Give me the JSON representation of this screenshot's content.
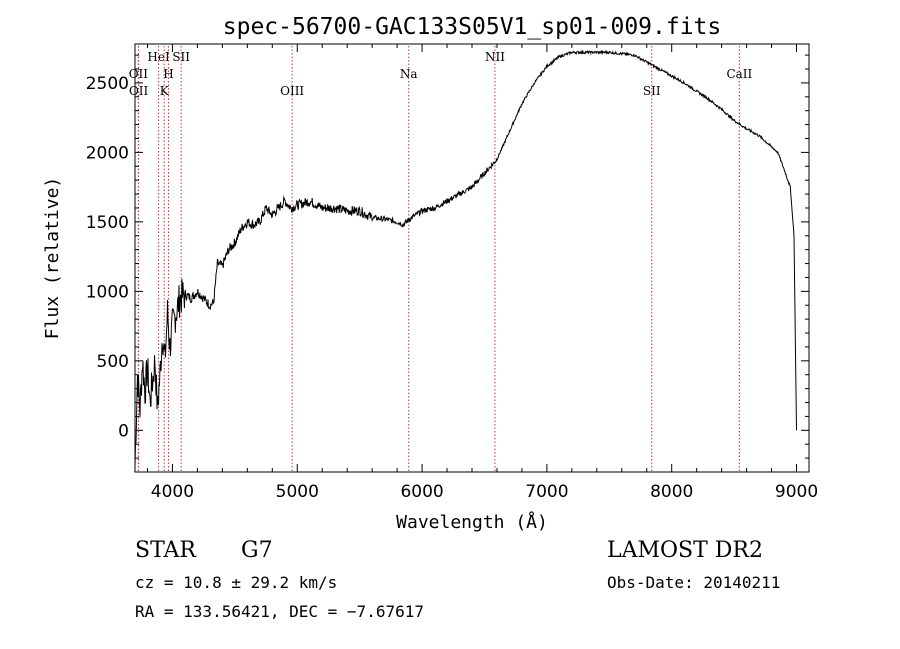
{
  "chart_data": {
    "type": "line",
    "title": "spec-56700-GAC133S05V1_sp01-009.fits",
    "xlabel": "Wavelength (Å)",
    "ylabel": "Flux (relative)",
    "xlim": [
      3700,
      9100
    ],
    "ylim": [
      -300,
      2780
    ],
    "x_ticks": [
      4000,
      5000,
      6000,
      7000,
      8000,
      9000
    ],
    "y_ticks": [
      0,
      500,
      1000,
      1500,
      2000,
      2500
    ],
    "grid": false,
    "line_color": "#000000",
    "marker_color": "#cc3333",
    "lines": [
      {
        "name": "OII",
        "wavelength": 3727,
        "row": "upper"
      },
      {
        "name": "OII",
        "wavelength": 3729,
        "row": "lower"
      },
      {
        "name": "HeI",
        "wavelength": 3889,
        "row": "top"
      },
      {
        "name": "H",
        "wavelength": 3968,
        "row": "upper"
      },
      {
        "name": "K",
        "wavelength": 3934,
        "row": "lower"
      },
      {
        "name": "SII",
        "wavelength": 4070,
        "row": "top"
      },
      {
        "name": "OIII",
        "wavelength": 4959,
        "row": "lower"
      },
      {
        "name": "Na",
        "wavelength": 5893,
        "row": "upper"
      },
      {
        "name": "NII",
        "wavelength": 6584,
        "row": "top"
      },
      {
        "name": "SII",
        "wavelength": 7840,
        "row": "lower"
      },
      {
        "name": "CaII",
        "wavelength": 8542,
        "row": "upper"
      }
    ],
    "series": [
      {
        "x": [
          3700,
          3720,
          3740,
          3760,
          3780,
          3800,
          3820,
          3840,
          3860,
          3880,
          3900,
          3920,
          3940,
          3960,
          3980,
          4000,
          4030,
          4060,
          4100,
          4150,
          4200,
          4250,
          4300,
          4330,
          4360,
          4400,
          4450,
          4500,
          4550,
          4600,
          4650,
          4700,
          4750,
          4800,
          4850,
          4900,
          4950,
          5000,
          5100,
          5200,
          5300,
          5400,
          5500,
          5600,
          5700,
          5800,
          5850,
          5900,
          6000,
          6100,
          6200,
          6300,
          6400,
          6500,
          6550,
          6600,
          6650,
          6700,
          6800,
          6900,
          7000,
          7100,
          7200,
          7300,
          7400,
          7500,
          7600,
          7700,
          7800,
          7900,
          8000,
          8100,
          8200,
          8300,
          8400,
          8500,
          8600,
          8700,
          8800,
          8850,
          8900,
          8950,
          8980,
          9000
        ],
        "y": [
          -250,
          400,
          150,
          500,
          280,
          450,
          200,
          350,
          500,
          150,
          400,
          700,
          500,
          850,
          600,
          750,
          850,
          950,
          980,
          950,
          1000,
          950,
          900,
          920,
          1200,
          1180,
          1300,
          1350,
          1450,
          1500,
          1480,
          1500,
          1600,
          1550,
          1600,
          1650,
          1600,
          1620,
          1650,
          1600,
          1600,
          1580,
          1580,
          1530,
          1520,
          1500,
          1480,
          1520,
          1580,
          1600,
          1650,
          1700,
          1750,
          1850,
          1900,
          1950,
          2050,
          2150,
          2350,
          2500,
          2620,
          2690,
          2720,
          2720,
          2720,
          2720,
          2710,
          2700,
          2650,
          2600,
          2550,
          2500,
          2440,
          2380,
          2310,
          2230,
          2170,
          2120,
          2040,
          2000,
          1880,
          1750,
          1400,
          0
        ]
      }
    ]
  },
  "info": {
    "class": "STAR",
    "subclass": "G7",
    "survey": "LAMOST DR2",
    "cz": "cz = 10.8 ± 29.2 km/s",
    "obs_date": "Obs-Date: 20140211",
    "coords": "RA = 133.56421, DEC =  −7.67617"
  }
}
